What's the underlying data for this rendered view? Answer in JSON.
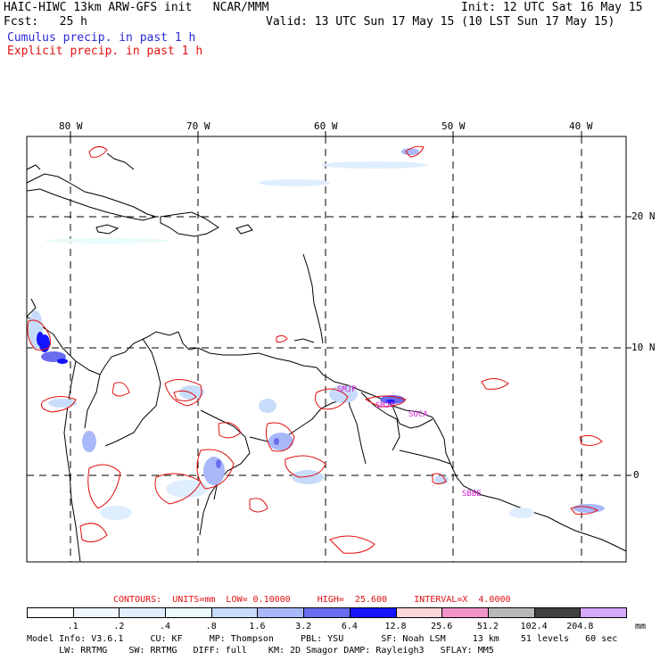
{
  "header": {
    "title": "HAIC-HIWC 13km ARW-GFS init   NCAR/MMM",
    "forecast": "Fcst:   25 h",
    "init": "Init: 12 UTC Sat 16 May 15",
    "valid": "Valid: 13 UTC Sun 17 May 15 (10 LST Sun 17 May 15)",
    "legend_cumulus": "Cumulus precip. in past 1 h",
    "legend_explicit": "Explicit precip. in past 1 h"
  },
  "map": {
    "lon_labels": [
      "80 W",
      "70 W",
      "60 W",
      "50 W",
      "40 W"
    ],
    "lat_labels": [
      "20 N",
      "10 N",
      "0"
    ],
    "place_labels": [
      "SMJP",
      "SOCA",
      "SBBE",
      "SMJP"
    ]
  },
  "contours": {
    "label": "CONTOURS:  UNITS=mm  LOW= 0.10000     HIGH=  25.600     INTERVAL=X  4.0000"
  },
  "colorbar": {
    "unit": "mm",
    "labels": [
      ".1",
      ".2",
      ".4",
      ".8",
      "1.6",
      "3.2",
      "6.4",
      "12.8",
      "25.6",
      "51.2",
      "102.4",
      "204.8"
    ],
    "colors": [
      "#ffffff",
      "#f0f7ff",
      "#dfeefe",
      "#e9fbfb",
      "#c7dcfa",
      "#a9b8f8",
      "#6a6cf0",
      "#1414ff",
      "#fbd6da",
      "#f294c8",
      "#b8b8b8",
      "#404040",
      "#d6a8f8"
    ]
  },
  "footer": {
    "line1": "Model Info: V3.6.1     CU: KF     MP: Thompson     PBL: YSU       SF: Noah LSM     13 km    51 levels   60 sec",
    "line2": "      LW: RRTMG    SW: RRTMG   DIFF: full    KM: 2D Smagor DAMP: Rayleigh3   SFLAY: MM5"
  }
}
